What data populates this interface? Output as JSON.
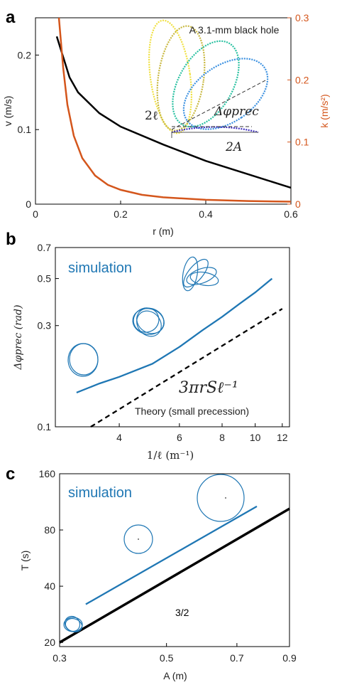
{
  "panels": {
    "a": {
      "letter": "a",
      "xlabel": "r (m)",
      "ylabel": "v (m/s)",
      "y2label": "k (m/s²)",
      "annotation": "A 3.1-mm black hole",
      "label_2l": "2ℓ",
      "label_dphi": "Δφprec",
      "label_2A": "2A",
      "xticks": [
        "0",
        "0.2",
        "0.4",
        "0.6"
      ],
      "yticks": [
        "0",
        "0.1",
        "0.2"
      ],
      "y2ticks": [
        "0",
        "0.1",
        "0.2",
        "0.3"
      ]
    },
    "b": {
      "letter": "b",
      "xlabel": "1/ℓ (m⁻¹)",
      "ylabel": "Δφprec (rad)",
      "sim_label": "simulation",
      "theory_formula": "3πrSℓ⁻¹",
      "theory_label": "Theory (small precession)",
      "xticks": [
        "4",
        "6",
        "8",
        "10",
        "12"
      ],
      "yticks": [
        "0.1",
        "0.3",
        "0.5",
        "0.7"
      ]
    },
    "c": {
      "letter": "c",
      "xlabel": "A (m)",
      "ylabel": "T (s)",
      "sim_label": "simulation",
      "slope_label": "3/2",
      "xticks": [
        "0.3",
        "0.5",
        "0.7",
        "0.9"
      ],
      "yticks": [
        "20",
        "40",
        "80",
        "160"
      ]
    }
  },
  "colors": {
    "black": "#000000",
    "orange": "#d4561c",
    "blue": "#1f77b4"
  },
  "chart_data": [
    {
      "type": "line",
      "panel": "a",
      "xlim": [
        0,
        0.6
      ],
      "ylim": [
        0,
        0.25
      ],
      "y2lim": [
        0,
        0.3
      ],
      "series": [
        {
          "axis": "left",
          "x": [
            0.05,
            0.08,
            0.1,
            0.15,
            0.2,
            0.3,
            0.4,
            0.5,
            0.6
          ],
          "y": [
            0.225,
            0.17,
            0.15,
            0.122,
            0.104,
            0.08,
            0.058,
            0.04,
            0.022
          ]
        },
        {
          "axis": "right",
          "x": [
            0.055,
            0.065,
            0.075,
            0.09,
            0.11,
            0.14,
            0.17,
            0.2,
            0.25,
            0.3,
            0.4,
            0.5,
            0.6
          ],
          "y": [
            0.3,
            0.22,
            0.16,
            0.11,
            0.074,
            0.046,
            0.031,
            0.023,
            0.015,
            0.011,
            0.007,
            0.005,
            0.004
          ]
        }
      ]
    },
    {
      "type": "line",
      "panel": "b",
      "xscale": "log",
      "yscale": "log",
      "xlim": [
        2.6,
        12.6
      ],
      "ylim": [
        0.1,
        0.7
      ],
      "series": [
        {
          "x": [
            3,
            3.5,
            4,
            5,
            6,
            7,
            8,
            9,
            10,
            11.2
          ],
          "y": [
            0.145,
            0.16,
            0.172,
            0.198,
            0.238,
            0.285,
            0.33,
            0.38,
            0.43,
            0.5
          ]
        },
        {
          "x": [
            3.3,
            12
          ],
          "y": [
            0.1,
            0.36
          ]
        }
      ]
    },
    {
      "type": "line",
      "panel": "c",
      "xscale": "log",
      "yscale": "log",
      "xlim": [
        0.3,
        0.9
      ],
      "ylim": [
        19,
        160
      ],
      "series": [
        {
          "x": [
            0.34,
            0.77
          ],
          "y": [
            32,
            107
          ]
        },
        {
          "x": [
            0.3,
            0.9
          ],
          "y": [
            20,
            104
          ]
        }
      ]
    }
  ]
}
